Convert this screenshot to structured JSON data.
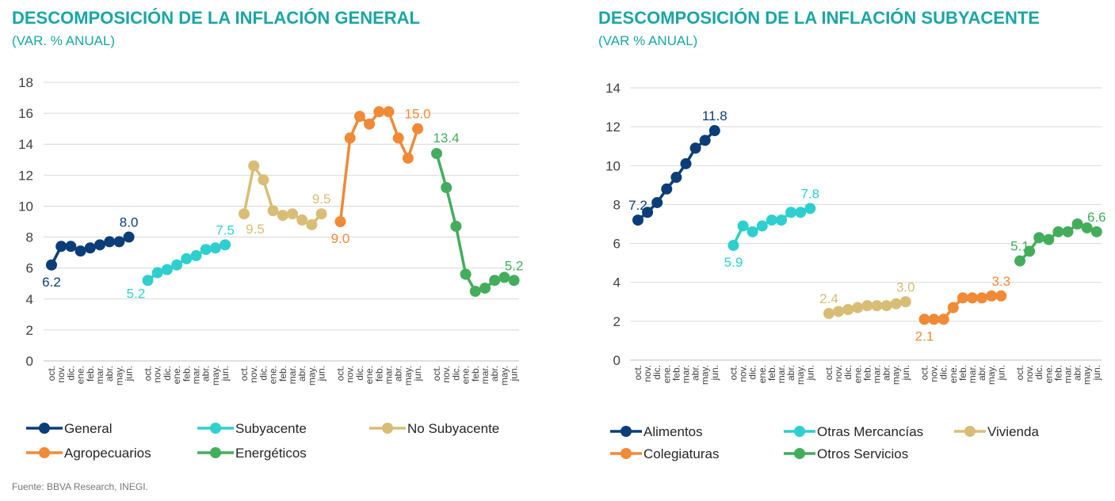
{
  "source": "Fuente: BBVA Research, INEGI.",
  "chart_data": [
    {
      "type": "line",
      "title": "DESCOMPOSICIÓN DE LA INFLACIÓN GENERAL",
      "subtitle": "(VAR. % ANUAL)",
      "ylim": [
        0,
        18
      ],
      "yticks": [
        "0",
        "2",
        "4",
        "6",
        "8",
        "10",
        "12",
        "14",
        "16",
        "18"
      ],
      "grid": true,
      "legend_position": "bottom",
      "categories": [
        "oct.",
        "nov.",
        "dic.",
        "ene.",
        "feb.",
        "mar.",
        "abr.",
        "may.",
        "jun."
      ],
      "series": [
        {
          "name": "General",
          "color": "#0b3d78",
          "values": [
            6.2,
            7.4,
            7.4,
            7.1,
            7.3,
            7.5,
            7.7,
            7.7,
            8.0
          ],
          "labels": [
            {
              "i": 0,
              "text": "6.2",
              "pos": "below"
            },
            {
              "i": 8,
              "text": "8.0",
              "pos": "above"
            }
          ]
        },
        {
          "name": "Subyacente",
          "color": "#2ecfce",
          "values": [
            5.2,
            5.7,
            5.9,
            6.2,
            6.6,
            6.8,
            7.2,
            7.3,
            7.5
          ],
          "labels": [
            {
              "i": 0,
              "text": "5.2",
              "pos": "below-left"
            },
            {
              "i": 8,
              "text": "7.5",
              "pos": "above"
            }
          ]
        },
        {
          "name": "No Subyacente",
          "color": "#d8bd76",
          "values": [
            9.5,
            12.6,
            11.7,
            9.7,
            9.4,
            9.5,
            9.1,
            8.8,
            9.5
          ],
          "labels": [
            {
              "i": 0,
              "text": "9.5",
              "pos": "below-right"
            },
            {
              "i": 8,
              "text": "9.5",
              "pos": "above"
            }
          ]
        },
        {
          "name": "Agropecuarios",
          "color": "#f08a37",
          "values": [
            9.0,
            14.4,
            15.8,
            15.3,
            16.1,
            16.1,
            14.4,
            13.1,
            15.0
          ],
          "labels": [
            {
              "i": 0,
              "text": "9.0",
              "pos": "below"
            },
            {
              "i": 8,
              "text": "15.0",
              "pos": "above"
            }
          ]
        },
        {
          "name": "Energéticos",
          "color": "#44ad5d",
          "values": [
            13.4,
            11.2,
            8.7,
            5.6,
            4.5,
            4.7,
            5.2,
            5.4,
            5.2
          ],
          "labels": [
            {
              "i": 0,
              "text": "13.4",
              "pos": "above-right"
            },
            {
              "i": 8,
              "text": "5.2",
              "pos": "above"
            }
          ]
        }
      ]
    },
    {
      "type": "line",
      "title": "DESCOMPOSICIÓN DE LA INFLACIÓN SUBYACENTE",
      "subtitle": "(VAR % ANUAL)",
      "ylim": [
        0,
        14
      ],
      "yticks": [
        "0",
        "2",
        "4",
        "6",
        "8",
        "10",
        "12",
        "14"
      ],
      "grid": true,
      "legend_position": "bottom",
      "categories": [
        "oct.",
        "nov.",
        "dic.",
        "ene.",
        "feb.",
        "mar.",
        "abr.",
        "may.",
        "jun."
      ],
      "series": [
        {
          "name": "Alimentos",
          "color": "#0b3d78",
          "values": [
            7.2,
            7.6,
            8.1,
            8.8,
            9.4,
            10.1,
            10.9,
            11.3,
            11.8
          ],
          "labels": [
            {
              "i": 0,
              "text": "7.2",
              "pos": "above"
            },
            {
              "i": 8,
              "text": "11.8",
              "pos": "above"
            }
          ]
        },
        {
          "name": "Otras Mercancías",
          "color": "#2ecfce",
          "values": [
            5.9,
            6.9,
            6.6,
            6.9,
            7.2,
            7.2,
            7.6,
            7.6,
            7.8
          ],
          "labels": [
            {
              "i": 0,
              "text": "5.9",
              "pos": "below"
            },
            {
              "i": 8,
              "text": "7.8",
              "pos": "above"
            }
          ]
        },
        {
          "name": "Vivienda",
          "color": "#d8bd76",
          "values": [
            2.4,
            2.5,
            2.6,
            2.7,
            2.8,
            2.8,
            2.8,
            2.9,
            3.0
          ],
          "labels": [
            {
              "i": 0,
              "text": "2.4",
              "pos": "above"
            },
            {
              "i": 8,
              "text": "3.0",
              "pos": "above"
            }
          ]
        },
        {
          "name": "Colegiaturas",
          "color": "#f08a37",
          "values": [
            2.1,
            2.1,
            2.1,
            2.7,
            3.2,
            3.2,
            3.2,
            3.3,
            3.3
          ],
          "labels": [
            {
              "i": 0,
              "text": "2.1",
              "pos": "below"
            },
            {
              "i": 8,
              "text": "3.3",
              "pos": "above"
            }
          ]
        },
        {
          "name": "Otros Servicios",
          "color": "#44ad5d",
          "values": [
            5.1,
            5.6,
            6.3,
            6.2,
            6.6,
            6.6,
            7.0,
            6.8,
            6.6
          ],
          "labels": [
            {
              "i": 0,
              "text": "5.1",
              "pos": "above"
            },
            {
              "i": 8,
              "text": "6.6",
              "pos": "above"
            }
          ]
        }
      ]
    }
  ]
}
